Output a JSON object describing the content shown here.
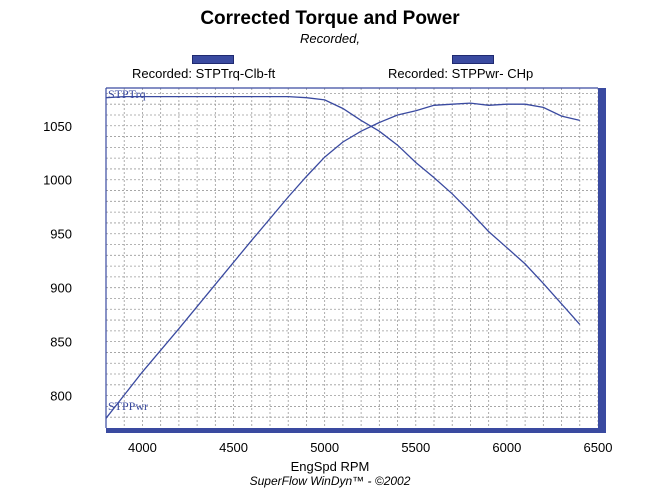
{
  "chart_data": {
    "type": "line",
    "title": "Corrected Torque and Power",
    "subtitle": "Recorded,",
    "xlabel": "EngSpd RPM",
    "ylabel": "",
    "footer": "SuperFlow WinDyn™ - ©2002",
    "xlim": [
      3800,
      6500
    ],
    "ylim": [
      770,
      1085
    ],
    "xticks": [
      4000,
      4500,
      5000,
      5500,
      6000,
      6500
    ],
    "yticks": [
      800,
      850,
      900,
      950,
      1000,
      1050
    ],
    "grid": true,
    "legend": [
      {
        "label": "Recorded: STPTrq-Clb-ft",
        "color": "#3a4aa0"
      },
      {
        "label": "Recorded: STPPwr- CHp",
        "color": "#3a4aa0"
      }
    ],
    "series": [
      {
        "name": "STPTrq",
        "color": "#3a4aa0",
        "x": [
          3800,
          3900,
          4000,
          4200,
          4400,
          4600,
          4800,
          4900,
          5000,
          5100,
          5200,
          5300,
          5400,
          5500,
          5600,
          5700,
          5800,
          5900,
          6000,
          6100,
          6200,
          6300,
          6400
        ],
        "y": [
          1076,
          1077,
          1077,
          1077,
          1077,
          1077,
          1077,
          1076,
          1074,
          1066,
          1055,
          1045,
          1032,
          1016,
          1002,
          987,
          970,
          952,
          937,
          922,
          904,
          885,
          866
        ]
      },
      {
        "name": "STPPwr",
        "color": "#3a4aa0",
        "x": [
          3800,
          4000,
          4200,
          4400,
          4600,
          4800,
          4900,
          5000,
          5100,
          5200,
          5300,
          5400,
          5500,
          5600,
          5700,
          5800,
          5900,
          6000,
          6100,
          6200,
          6300,
          6400
        ],
        "y": [
          779,
          822,
          862,
          903,
          944,
          984,
          1003,
          1021,
          1035,
          1045,
          1053,
          1060,
          1064,
          1069,
          1070,
          1071,
          1069,
          1070,
          1070,
          1067,
          1059,
          1055
        ]
      }
    ]
  }
}
